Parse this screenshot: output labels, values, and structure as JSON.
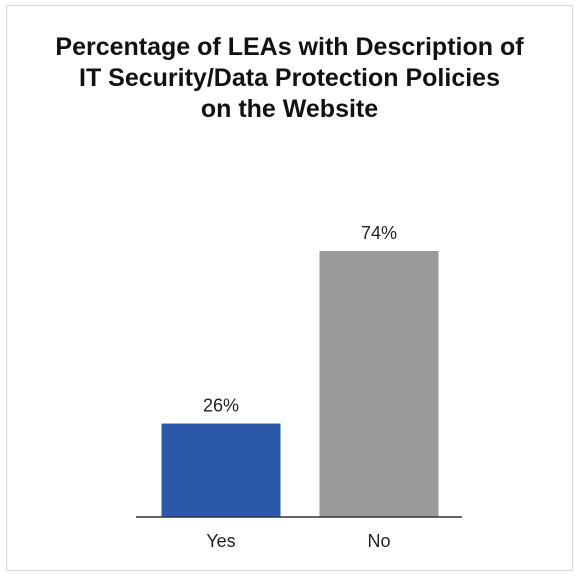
{
  "chart_data": {
    "type": "bar",
    "title": "Percentage of LEAs with Description of\nIT Security/Data Protection Policies\non the Website",
    "categories": [
      "Yes",
      "No"
    ],
    "values": [
      26,
      74
    ],
    "data_labels": [
      "26%",
      "74%"
    ],
    "colors": [
      "#2b58a8",
      "#9a9a9a"
    ],
    "ylim": [
      0,
      74
    ],
    "grid": false,
    "legend": "none",
    "xlabel": "",
    "ylabel": ""
  }
}
